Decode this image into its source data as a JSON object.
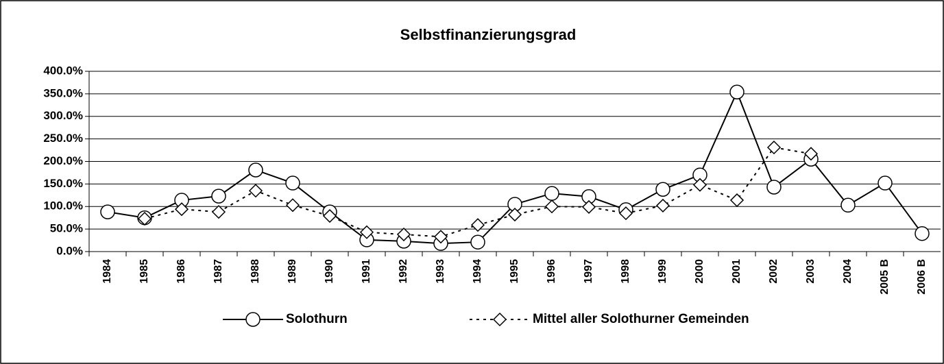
{
  "chart_data": {
    "type": "line",
    "title": "Selbstfinanzierungsgrad",
    "categories": [
      "1984",
      "1985",
      "1986",
      "1987",
      "1988",
      "1989",
      "1990",
      "1991",
      "1992",
      "1993",
      "1994",
      "1995",
      "1996",
      "1997",
      "1998",
      "1999",
      "2000",
      "2001",
      "2002",
      "2003",
      "2004",
      "2005 B",
      "2006 B"
    ],
    "series": [
      {
        "name": "Solothurn",
        "color": "#000000",
        "marker": "circle",
        "dash": "solid",
        "values": [
          88,
          75,
          114,
          123,
          181,
          152,
          88,
          26,
          23,
          18,
          21,
          105,
          129,
          122,
          93,
          138,
          170,
          354,
          143,
          205,
          103,
          152,
          40
        ]
      },
      {
        "name": "Mittel aller Solothurner Gemeinden",
        "color": "#000000",
        "marker": "diamond",
        "dash": "dotted",
        "values": [
          null,
          73,
          94,
          88,
          135,
          103,
          79,
          43,
          38,
          33,
          59,
          82,
          100,
          99,
          85,
          102,
          148,
          114,
          231,
          217,
          null,
          null,
          null
        ]
      }
    ],
    "ylim": [
      0,
      400
    ],
    "yticks": [
      {
        "value": 0,
        "label": "0.0%"
      },
      {
        "value": 50,
        "label": "50.0%"
      },
      {
        "value": 100,
        "label": "100.0%"
      },
      {
        "value": 150,
        "label": "150.0%"
      },
      {
        "value": 200,
        "label": "200.0%"
      },
      {
        "value": 250,
        "label": "250.0%"
      },
      {
        "value": 300,
        "label": "300.0%"
      },
      {
        "value": 350,
        "label": "350.0%"
      },
      {
        "value": 400,
        "label": "400.0%"
      }
    ],
    "grid": true,
    "legend": "bottom"
  }
}
